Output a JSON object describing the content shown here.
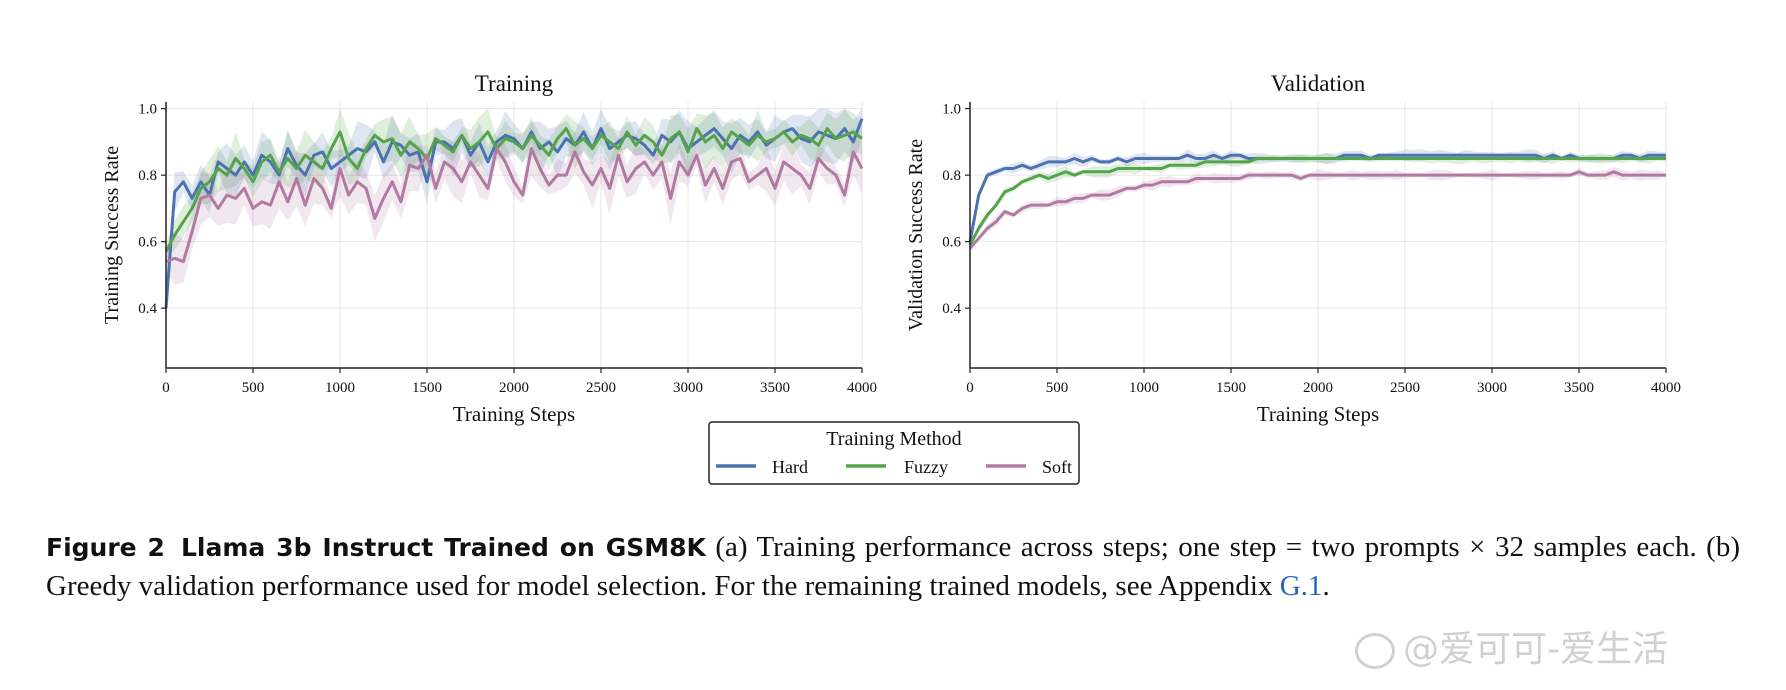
{
  "chart_data": [
    {
      "type": "line",
      "title": "Training",
      "xlabel": "Training Steps",
      "ylabel": "Training Success Rate",
      "xlim": [
        0,
        4000
      ],
      "ylim": [
        0.22,
        1.02
      ],
      "xticks": [
        0,
        500,
        1000,
        1500,
        2000,
        2500,
        3000,
        3500,
        4000
      ],
      "yticks": [
        0.4,
        0.6,
        0.8,
        1.0
      ],
      "grid": true,
      "x": [
        0,
        50,
        100,
        150,
        200,
        250,
        300,
        350,
        400,
        450,
        500,
        550,
        600,
        650,
        700,
        750,
        800,
        850,
        900,
        950,
        1000,
        1050,
        1100,
        1150,
        1200,
        1250,
        1300,
        1350,
        1400,
        1450,
        1500,
        1550,
        1600,
        1650,
        1700,
        1750,
        1800,
        1850,
        1900,
        1950,
        2000,
        2050,
        2100,
        2150,
        2200,
        2250,
        2300,
        2350,
        2400,
        2450,
        2500,
        2550,
        2600,
        2650,
        2700,
        2750,
        2800,
        2850,
        2900,
        2950,
        3000,
        3050,
        3100,
        3150,
        3200,
        3250,
        3300,
        3350,
        3400,
        3450,
        3500,
        3550,
        3600,
        3650,
        3700,
        3750,
        3800,
        3850,
        3900,
        3950,
        4000
      ],
      "series": [
        {
          "name": "Hard",
          "color": "#4c72b0",
          "values": [
            0.4,
            0.75,
            0.78,
            0.73,
            0.78,
            0.74,
            0.84,
            0.82,
            0.8,
            0.84,
            0.8,
            0.86,
            0.84,
            0.8,
            0.88,
            0.83,
            0.8,
            0.86,
            0.87,
            0.82,
            0.84,
            0.86,
            0.88,
            0.87,
            0.9,
            0.84,
            0.9,
            0.89,
            0.86,
            0.87,
            0.78,
            0.9,
            0.9,
            0.88,
            0.92,
            0.86,
            0.9,
            0.84,
            0.9,
            0.92,
            0.91,
            0.88,
            0.93,
            0.88,
            0.9,
            0.87,
            0.91,
            0.89,
            0.93,
            0.88,
            0.94,
            0.88,
            0.9,
            0.92,
            0.91,
            0.89,
            0.86,
            0.92,
            0.9,
            0.93,
            0.88,
            0.9,
            0.92,
            0.94,
            0.91,
            0.88,
            0.92,
            0.9,
            0.93,
            0.89,
            0.91,
            0.93,
            0.94,
            0.91,
            0.9,
            0.93,
            0.92,
            0.91,
            0.94,
            0.9,
            0.97
          ]
        },
        {
          "name": "Fuzzy",
          "color": "#55a34a",
          "values": [
            0.57,
            0.62,
            0.66,
            0.7,
            0.76,
            0.78,
            0.82,
            0.8,
            0.85,
            0.82,
            0.78,
            0.84,
            0.86,
            0.81,
            0.85,
            0.82,
            0.86,
            0.84,
            0.82,
            0.88,
            0.93,
            0.85,
            0.82,
            0.88,
            0.92,
            0.9,
            0.91,
            0.86,
            0.9,
            0.88,
            0.85,
            0.91,
            0.89,
            0.87,
            0.92,
            0.88,
            0.9,
            0.93,
            0.88,
            0.91,
            0.9,
            0.88,
            0.92,
            0.89,
            0.86,
            0.91,
            0.94,
            0.89,
            0.91,
            0.88,
            0.92,
            0.9,
            0.88,
            0.93,
            0.89,
            0.92,
            0.9,
            0.86,
            0.91,
            0.93,
            0.87,
            0.94,
            0.9,
            0.92,
            0.88,
            0.93,
            0.91,
            0.89,
            0.92,
            0.9,
            0.91,
            0.93,
            0.9,
            0.92,
            0.91,
            0.89,
            0.94,
            0.91,
            0.92,
            0.93,
            0.91
          ]
        },
        {
          "name": "Soft",
          "color": "#b07aa1",
          "values": [
            0.54,
            0.55,
            0.54,
            0.63,
            0.73,
            0.74,
            0.7,
            0.74,
            0.73,
            0.76,
            0.7,
            0.72,
            0.71,
            0.78,
            0.72,
            0.79,
            0.71,
            0.79,
            0.76,
            0.7,
            0.82,
            0.74,
            0.78,
            0.76,
            0.67,
            0.73,
            0.78,
            0.72,
            0.83,
            0.82,
            0.86,
            0.76,
            0.84,
            0.82,
            0.78,
            0.84,
            0.8,
            0.76,
            0.88,
            0.84,
            0.78,
            0.74,
            0.88,
            0.82,
            0.77,
            0.8,
            0.8,
            0.87,
            0.81,
            0.77,
            0.82,
            0.76,
            0.86,
            0.78,
            0.82,
            0.84,
            0.8,
            0.84,
            0.73,
            0.84,
            0.8,
            0.86,
            0.77,
            0.82,
            0.76,
            0.84,
            0.85,
            0.78,
            0.8,
            0.82,
            0.76,
            0.84,
            0.82,
            0.8,
            0.76,
            0.85,
            0.82,
            0.8,
            0.74,
            0.87,
            0.82
          ]
        }
      ]
    },
    {
      "type": "line",
      "title": "Validation",
      "xlabel": "Training Steps",
      "ylabel": "Validation Success Rate",
      "xlim": [
        0,
        4000
      ],
      "ylim": [
        0.22,
        1.02
      ],
      "xticks": [
        0,
        500,
        1000,
        1500,
        2000,
        2500,
        3000,
        3500,
        4000
      ],
      "yticks": [
        0.4,
        0.6,
        0.8,
        1.0
      ],
      "grid": true,
      "x": [
        0,
        50,
        100,
        150,
        200,
        250,
        300,
        350,
        400,
        450,
        500,
        550,
        600,
        650,
        700,
        750,
        800,
        850,
        900,
        950,
        1000,
        1050,
        1100,
        1150,
        1200,
        1250,
        1300,
        1350,
        1400,
        1450,
        1500,
        1550,
        1600,
        1650,
        1700,
        1750,
        1800,
        1850,
        1900,
        1950,
        2000,
        2050,
        2100,
        2150,
        2200,
        2250,
        2300,
        2350,
        2400,
        2450,
        2500,
        2550,
        2600,
        2650,
        2700,
        2750,
        2800,
        2850,
        2900,
        2950,
        3000,
        3050,
        3100,
        3150,
        3200,
        3250,
        3300,
        3350,
        3400,
        3450,
        3500,
        3550,
        3600,
        3650,
        3700,
        3750,
        3800,
        3850,
        3900,
        3950,
        4000
      ],
      "series": [
        {
          "name": "Hard",
          "color": "#4c72b0",
          "values": [
            0.6,
            0.74,
            0.8,
            0.81,
            0.82,
            0.82,
            0.83,
            0.82,
            0.83,
            0.84,
            0.84,
            0.84,
            0.85,
            0.84,
            0.85,
            0.84,
            0.84,
            0.85,
            0.84,
            0.85,
            0.85,
            0.85,
            0.85,
            0.85,
            0.85,
            0.86,
            0.85,
            0.85,
            0.86,
            0.85,
            0.86,
            0.86,
            0.85,
            0.85,
            0.85,
            0.85,
            0.85,
            0.85,
            0.85,
            0.85,
            0.85,
            0.85,
            0.85,
            0.86,
            0.86,
            0.86,
            0.85,
            0.86,
            0.86,
            0.86,
            0.86,
            0.86,
            0.86,
            0.86,
            0.86,
            0.86,
            0.86,
            0.86,
            0.86,
            0.86,
            0.86,
            0.86,
            0.86,
            0.86,
            0.86,
            0.86,
            0.85,
            0.86,
            0.85,
            0.86,
            0.85,
            0.85,
            0.85,
            0.85,
            0.85,
            0.86,
            0.86,
            0.85,
            0.86,
            0.86,
            0.86
          ]
        },
        {
          "name": "Fuzzy",
          "color": "#55a34a",
          "values": [
            0.59,
            0.64,
            0.68,
            0.71,
            0.75,
            0.76,
            0.78,
            0.79,
            0.8,
            0.79,
            0.8,
            0.81,
            0.8,
            0.81,
            0.81,
            0.81,
            0.81,
            0.82,
            0.82,
            0.82,
            0.82,
            0.82,
            0.82,
            0.83,
            0.83,
            0.83,
            0.83,
            0.84,
            0.84,
            0.84,
            0.84,
            0.84,
            0.84,
            0.85,
            0.85,
            0.85,
            0.85,
            0.85,
            0.85,
            0.85,
            0.85,
            0.85,
            0.85,
            0.85,
            0.85,
            0.85,
            0.85,
            0.85,
            0.85,
            0.85,
            0.85,
            0.85,
            0.85,
            0.85,
            0.85,
            0.85,
            0.85,
            0.85,
            0.85,
            0.85,
            0.85,
            0.85,
            0.85,
            0.85,
            0.85,
            0.85,
            0.85,
            0.85,
            0.85,
            0.85,
            0.85,
            0.85,
            0.85,
            0.85,
            0.85,
            0.85,
            0.85,
            0.85,
            0.85,
            0.85,
            0.85
          ]
        },
        {
          "name": "Soft",
          "color": "#b07aa1",
          "values": [
            0.58,
            0.61,
            0.64,
            0.66,
            0.69,
            0.68,
            0.7,
            0.71,
            0.71,
            0.71,
            0.72,
            0.72,
            0.73,
            0.73,
            0.74,
            0.74,
            0.74,
            0.75,
            0.76,
            0.76,
            0.77,
            0.77,
            0.78,
            0.78,
            0.78,
            0.78,
            0.79,
            0.79,
            0.79,
            0.79,
            0.79,
            0.79,
            0.8,
            0.8,
            0.8,
            0.8,
            0.8,
            0.8,
            0.79,
            0.8,
            0.8,
            0.8,
            0.8,
            0.8,
            0.8,
            0.8,
            0.8,
            0.8,
            0.8,
            0.8,
            0.8,
            0.8,
            0.8,
            0.8,
            0.8,
            0.8,
            0.8,
            0.8,
            0.8,
            0.8,
            0.8,
            0.8,
            0.8,
            0.8,
            0.8,
            0.8,
            0.8,
            0.8,
            0.8,
            0.8,
            0.81,
            0.8,
            0.8,
            0.8,
            0.81,
            0.8,
            0.8,
            0.8,
            0.8,
            0.8,
            0.8
          ]
        }
      ]
    }
  ],
  "legend": {
    "title": "Training Method",
    "items": [
      "Hard",
      "Fuzzy",
      "Soft"
    ]
  },
  "caption": {
    "label": "Figure 2",
    "title": "Llama 3b Instruct Trained on GSM8K",
    "text_before_link": " (a) Training performance across steps; one step = two prompts × 32 samples each. (b) Greedy validation performance used for model selection. For the remaining trained models, see Appendix ",
    "link_text": "G.1",
    "text_after_link": "."
  },
  "watermark": {
    "text": "@爱可可-爱生活"
  }
}
